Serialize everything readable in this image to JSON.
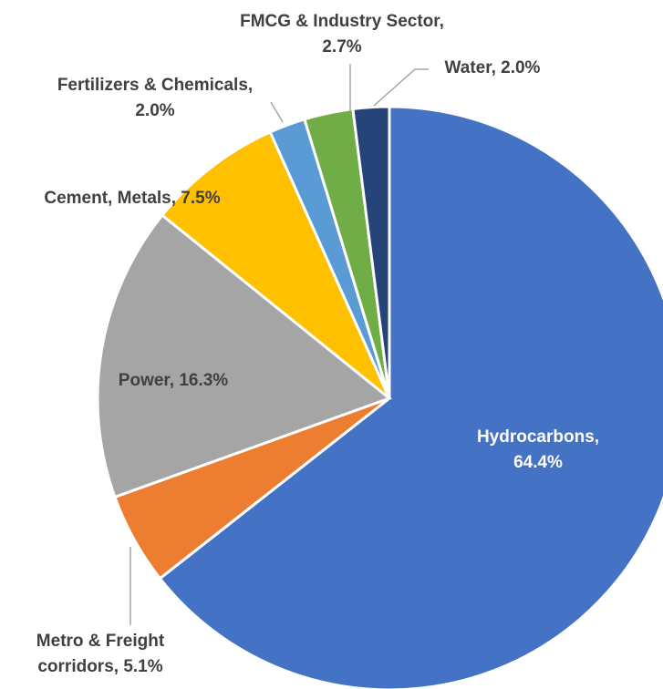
{
  "chart_data": {
    "type": "pie",
    "values": [
      64.4,
      5.1,
      16.3,
      7.5,
      2.0,
      2.7,
      2.0
    ],
    "value_labels": [
      "Hydrocarbons, 64.4%",
      "Metro & Freight\ncorridors, 5.1%",
      "Power, 16.3%",
      "Cement, Metals, 7.5%",
      "Fertilizers & Chemicals,\n2.0%",
      "FMCG & Industry Sector,\n2.7%",
      "Water, 2.0%"
    ],
    "colors": [
      "#4472c4",
      "#ed7d31",
      "#a5a5a5",
      "#ffc000",
      "#5b9bd5",
      "#70ad47",
      "#264478"
    ]
  }
}
